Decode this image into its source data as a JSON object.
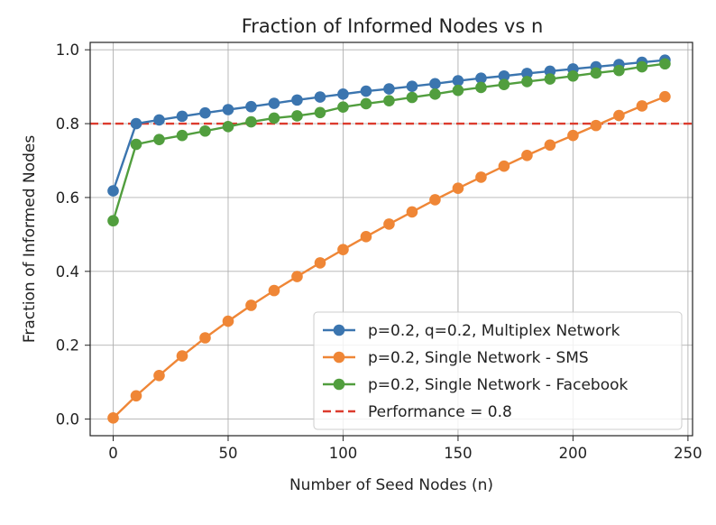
{
  "chart_data": {
    "type": "line",
    "title": "Fraction of Informed Nodes vs n",
    "xlabel": "Number of Seed Nodes (n)",
    "ylabel": "Fraction of Informed Nodes",
    "xlim": [
      -10,
      252
    ],
    "ylim": [
      -0.045,
      1.02
    ],
    "xticks": [
      0,
      50,
      100,
      150,
      200,
      250
    ],
    "yticks": [
      0.0,
      0.2,
      0.4,
      0.6,
      0.8,
      1.0
    ],
    "xtick_labels": [
      "0",
      "50",
      "100",
      "150",
      "200",
      "250"
    ],
    "ytick_labels": [
      "0.0",
      "0.2",
      "0.4",
      "0.6",
      "0.8",
      "1.0"
    ],
    "grid": true,
    "legend_position": "lower-right",
    "x": [
      0,
      10,
      20,
      30,
      40,
      50,
      60,
      70,
      80,
      90,
      100,
      110,
      120,
      130,
      140,
      150,
      160,
      170,
      180,
      190,
      200,
      210,
      220,
      230,
      240
    ],
    "series": [
      {
        "name": "p=0.2, q=0.2, Multiplex Network",
        "color": "#3b75af",
        "values": [
          0.618,
          0.8,
          0.81,
          0.82,
          0.829,
          0.838,
          0.846,
          0.855,
          0.864,
          0.872,
          0.88,
          0.888,
          0.894,
          0.901,
          0.908,
          0.916,
          0.923,
          0.929,
          0.936,
          0.942,
          0.948,
          0.954,
          0.96,
          0.966,
          0.972
        ]
      },
      {
        "name": "p=0.2, Single Network - SMS",
        "color": "#ef8636",
        "values": [
          0.003,
          0.063,
          0.118,
          0.171,
          0.22,
          0.265,
          0.308,
          0.348,
          0.386,
          0.423,
          0.459,
          0.494,
          0.528,
          0.561,
          0.594,
          0.625,
          0.655,
          0.685,
          0.714,
          0.742,
          0.768,
          0.795,
          0.822,
          0.848,
          0.873
        ]
      },
      {
        "name": "p=0.2, Single Network - Facebook",
        "color": "#519e3e",
        "values": [
          0.537,
          0.744,
          0.757,
          0.768,
          0.78,
          0.792,
          0.805,
          0.815,
          0.821,
          0.83,
          0.845,
          0.854,
          0.862,
          0.871,
          0.88,
          0.89,
          0.898,
          0.906,
          0.914,
          0.921,
          0.929,
          0.937,
          0.944,
          0.954,
          0.962
        ]
      }
    ],
    "reference_line": {
      "name": "Performance = 0.8",
      "y": 0.8,
      "color": "#dc3b2e",
      "style": "dashed"
    }
  }
}
